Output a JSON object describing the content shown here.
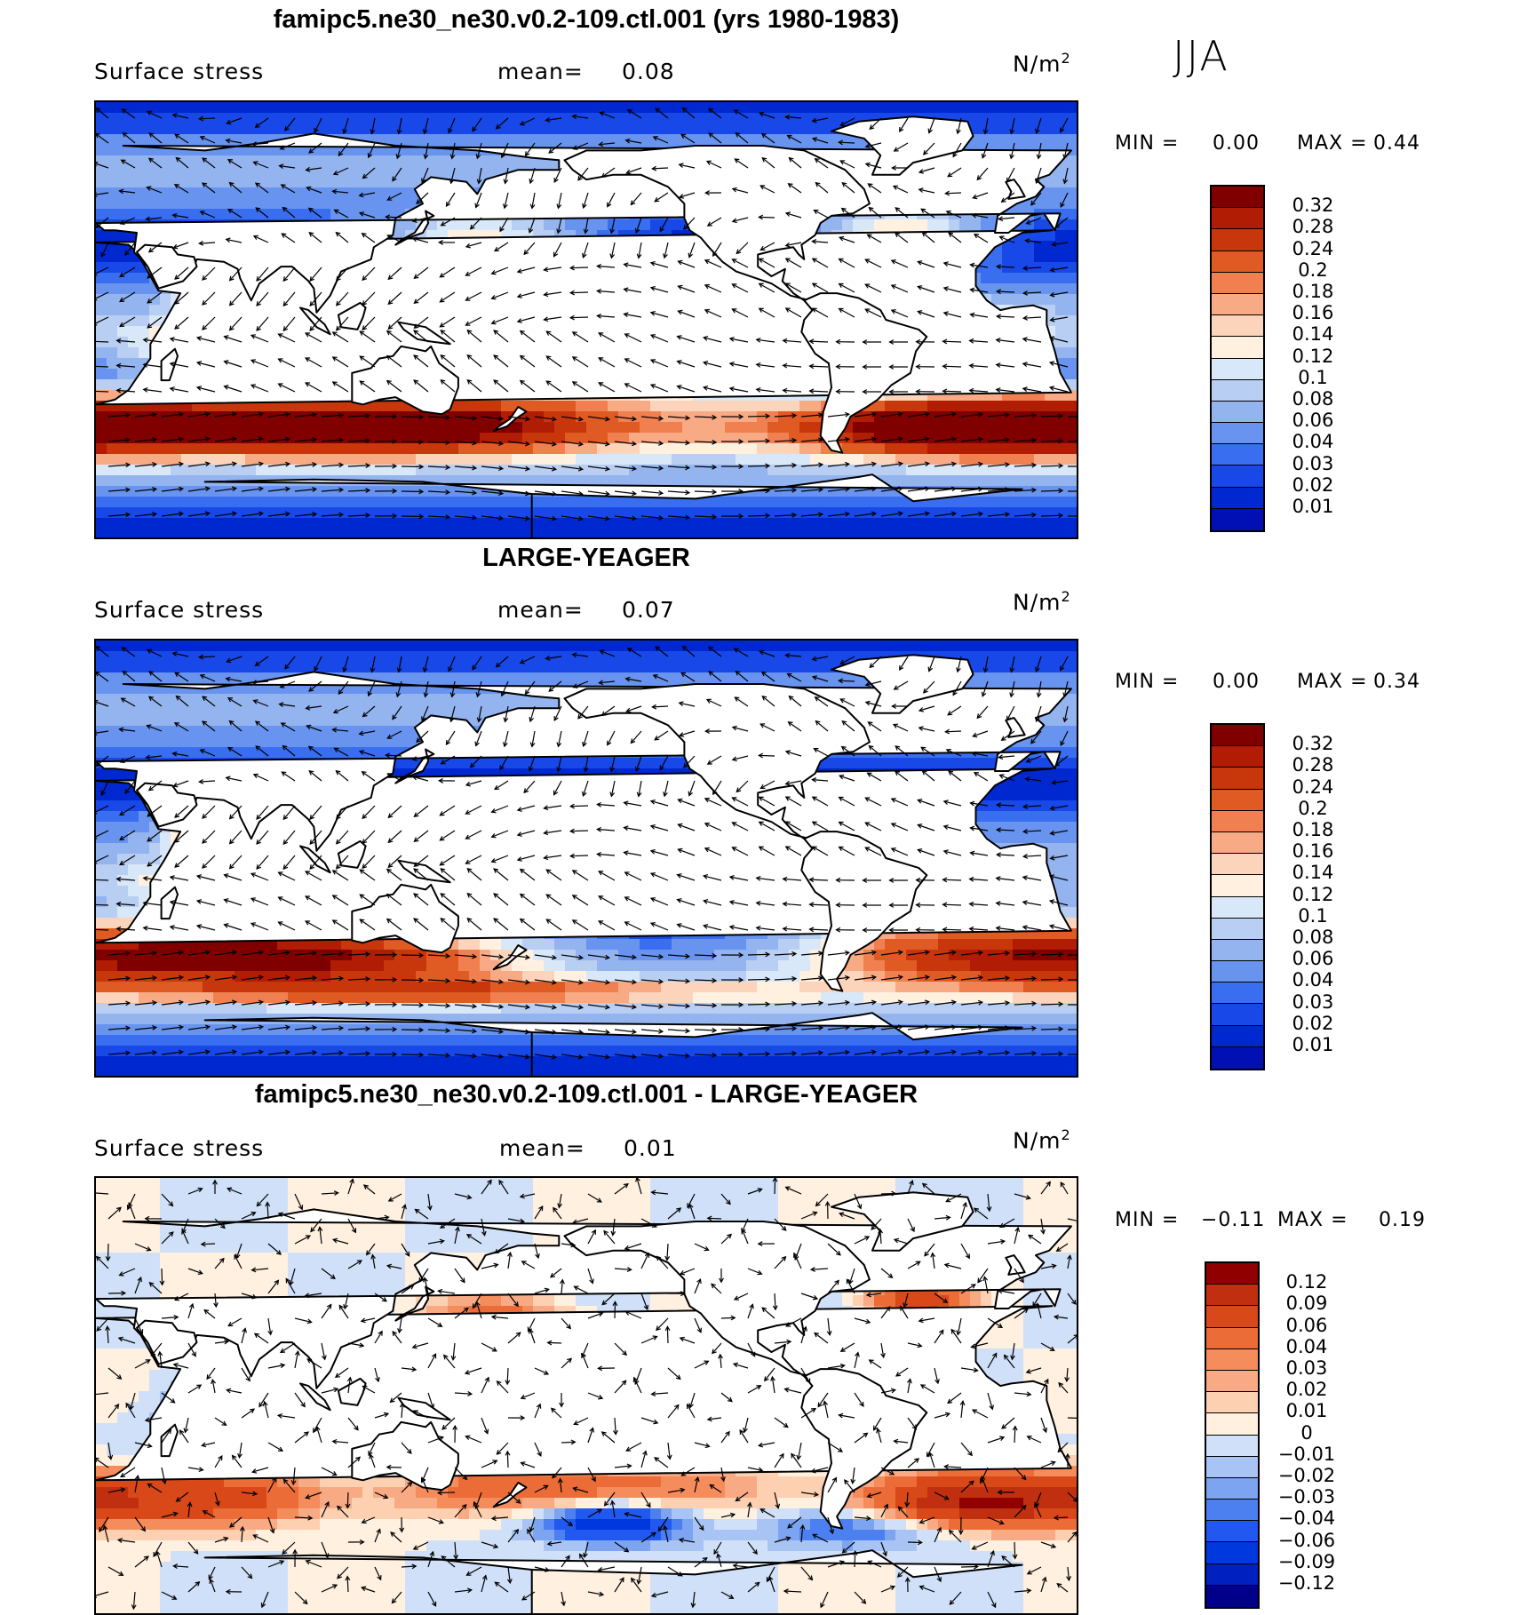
{
  "season": "JJA",
  "palettes": {
    "abs": [
      "#00008b",
      "#0010b4",
      "#0028d0",
      "#1848e8",
      "#3a6ef0",
      "#6894f0",
      "#94b4f0",
      "#b8cef2",
      "#d8e8f8",
      "#fff0e0",
      "#fcd4bc",
      "#f8aa84",
      "#f08050",
      "#e05a24",
      "#c8360c",
      "#b01c04",
      "#800000"
    ],
    "diff": [
      "#00008b",
      "#0020c0",
      "#0038e0",
      "#2058f0",
      "#4c80f0",
      "#7ca4f0",
      "#a8c4f4",
      "#d0e0f8",
      "#fff0e0",
      "#fcd0b0",
      "#f8aa84",
      "#f48c5c",
      "#ec6c38",
      "#d84818",
      "#c03010",
      "#900000"
    ]
  },
  "panels": [
    {
      "title": "famipc5.ne30_ne30.v0.2-109.ctl.001 (yrs 1980-1983)",
      "variable": "Surface stress",
      "mean_label": "mean=",
      "mean": "0.08",
      "units_base": "N/m",
      "units_exp": "2",
      "min_label": "MIN =",
      "min": "0.00",
      "max_label": "MAX =",
      "max": "0.44",
      "levels": [
        "0.32",
        "0.28",
        "0.24",
        "0.2",
        "0.18",
        "0.16",
        "0.14",
        "0.12",
        "0.1",
        "0.08",
        "0.06",
        "0.04",
        "0.03",
        "0.02",
        "0.01"
      ],
      "field_mean": 0.08
    },
    {
      "title": "LARGE-YEAGER",
      "variable": "Surface stress",
      "mean_label": "mean=",
      "mean": "0.07",
      "units_base": "N/m",
      "units_exp": "2",
      "min_label": "MIN =",
      "min": "0.00",
      "max_label": "MAX =",
      "max": "0.34",
      "levels": [
        "0.32",
        "0.28",
        "0.24",
        "0.2",
        "0.18",
        "0.16",
        "0.14",
        "0.12",
        "0.1",
        "0.08",
        "0.06",
        "0.04",
        "0.03",
        "0.02",
        "0.01"
      ],
      "field_mean": 0.07
    },
    {
      "title": "famipc5.ne30_ne30.v0.2-109.ctl.001 - LARGE-YEAGER",
      "variable": "Surface stress",
      "mean_label": "mean=",
      "mean": "0.01",
      "units_base": "N/m",
      "units_exp": "2",
      "min_label": "MIN =",
      "min": "−0.11",
      "max_label": "MAX =",
      "max": "0.19",
      "levels": [
        "0.12",
        "0.09",
        "0.06",
        "0.04",
        "0.03",
        "0.02",
        "0.01",
        "0",
        "−0.01",
        "−0.02",
        "−0.03",
        "−0.04",
        "−0.06",
        "−0.09",
        "−0.12"
      ],
      "field_mean": 0.01
    }
  ]
}
